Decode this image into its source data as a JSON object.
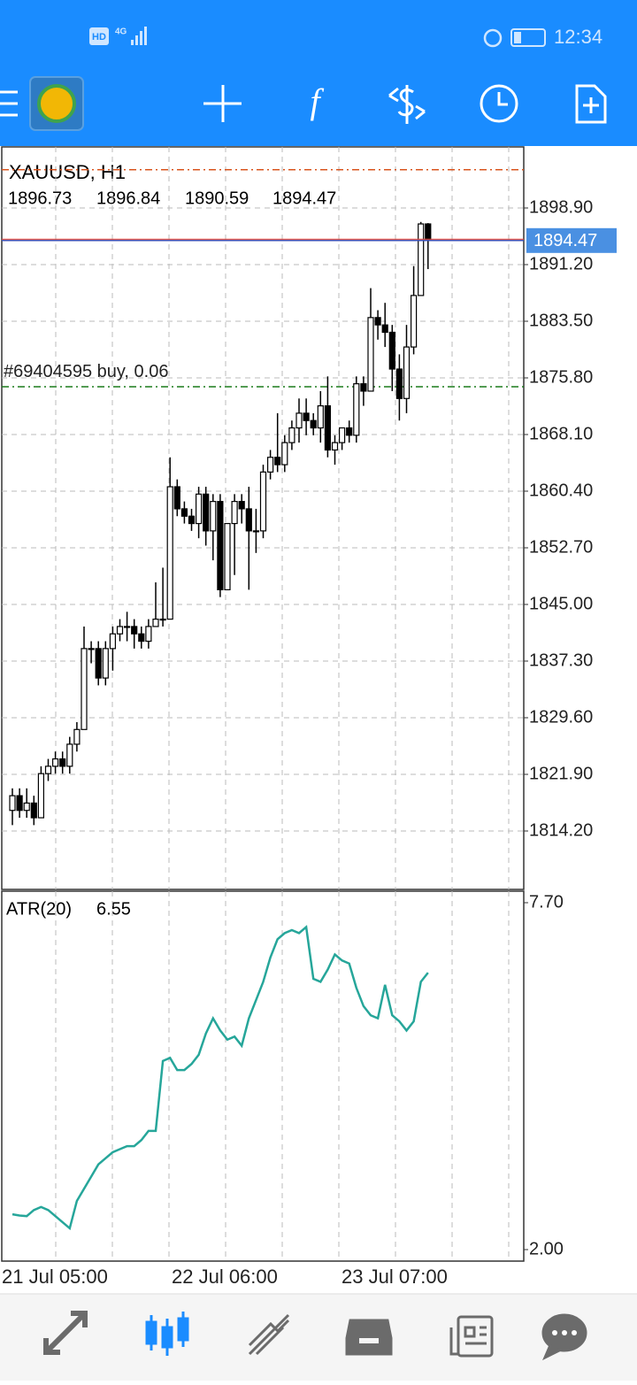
{
  "status_bar": {
    "hd": "HD",
    "network": "4G",
    "time": "12:34"
  },
  "toolbar": {
    "indicators": "f"
  },
  "chart_data": {
    "type": "candlestick",
    "title": "XAUUSD, H1",
    "candles": [
      {
        "open": 1817,
        "high": 1820,
        "low": 1815,
        "close": 1819
      },
      {
        "open": 1819,
        "high": 1820,
        "low": 1816,
        "close": 1817
      },
      {
        "open": 1817,
        "high": 1820,
        "low": 1816,
        "close": 1818
      },
      {
        "open": 1818,
        "high": 1819,
        "low": 1815,
        "close": 1816
      },
      {
        "open": 1816,
        "high": 1823,
        "low": 1816,
        "close": 1822
      },
      {
        "open": 1822,
        "high": 1824,
        "low": 1821,
        "close": 1823
      },
      {
        "open": 1823,
        "high": 1825,
        "low": 1822,
        "close": 1824
      },
      {
        "open": 1824,
        "high": 1825,
        "low": 1822,
        "close": 1823
      },
      {
        "open": 1823,
        "high": 1827,
        "low": 1822,
        "close": 1826
      },
      {
        "open": 1826,
        "high": 1829,
        "low": 1825,
        "close": 1828
      },
      {
        "open": 1828,
        "high": 1842,
        "low": 1828,
        "close": 1839
      },
      {
        "open": 1839,
        "high": 1840,
        "low": 1837,
        "close": 1839
      },
      {
        "open": 1839,
        "high": 1840,
        "low": 1834,
        "close": 1835
      },
      {
        "open": 1835,
        "high": 1840,
        "low": 1834,
        "close": 1839
      },
      {
        "open": 1839,
        "high": 1842,
        "low": 1836,
        "close": 1841
      },
      {
        "open": 1841,
        "high": 1843,
        "low": 1840,
        "close": 1842
      },
      {
        "open": 1842,
        "high": 1844,
        "low": 1840,
        "close": 1842
      },
      {
        "open": 1842,
        "high": 1843,
        "low": 1839,
        "close": 1841
      },
      {
        "open": 1841,
        "high": 1842,
        "low": 1839,
        "close": 1840
      },
      {
        "open": 1840,
        "high": 1843,
        "low": 1839,
        "close": 1842
      },
      {
        "open": 1842,
        "high": 1848,
        "low": 1842,
        "close": 1843
      },
      {
        "open": 1843,
        "high": 1850,
        "low": 1842,
        "close": 1843
      },
      {
        "open": 1843,
        "high": 1865,
        "low": 1843,
        "close": 1861
      },
      {
        "open": 1861,
        "high": 1862,
        "low": 1857,
        "close": 1858
      },
      {
        "open": 1858,
        "high": 1859,
        "low": 1856,
        "close": 1857
      },
      {
        "open": 1857,
        "high": 1858,
        "low": 1855,
        "close": 1856
      },
      {
        "open": 1856,
        "high": 1861,
        "low": 1854,
        "close": 1860
      },
      {
        "open": 1860,
        "high": 1861,
        "low": 1853,
        "close": 1855
      },
      {
        "open": 1855,
        "high": 1860,
        "low": 1851,
        "close": 1859
      },
      {
        "open": 1859,
        "high": 1860,
        "low": 1846,
        "close": 1847
      },
      {
        "open": 1847,
        "high": 1856,
        "low": 1847,
        "close": 1856
      },
      {
        "open": 1856,
        "high": 1860,
        "low": 1849,
        "close": 1859
      },
      {
        "open": 1859,
        "high": 1860,
        "low": 1856,
        "close": 1858
      },
      {
        "open": 1858,
        "high": 1861,
        "low": 1847,
        "close": 1855
      },
      {
        "open": 1855,
        "high": 1858,
        "low": 1852,
        "close": 1855
      },
      {
        "open": 1855,
        "high": 1864,
        "low": 1854,
        "close": 1863
      },
      {
        "open": 1863,
        "high": 1866,
        "low": 1862,
        "close": 1865
      },
      {
        "open": 1865,
        "high": 1871,
        "low": 1863,
        "close": 1864
      },
      {
        "open": 1864,
        "high": 1868,
        "low": 1863,
        "close": 1867
      },
      {
        "open": 1867,
        "high": 1870,
        "low": 1866,
        "close": 1869
      },
      {
        "open": 1869,
        "high": 1873,
        "low": 1867,
        "close": 1871
      },
      {
        "open": 1871,
        "high": 1873,
        "low": 1868,
        "close": 1870
      },
      {
        "open": 1870,
        "high": 1871,
        "low": 1868,
        "close": 1869
      },
      {
        "open": 1869,
        "high": 1874,
        "low": 1867,
        "close": 1872
      },
      {
        "open": 1872,
        "high": 1876,
        "low": 1865,
        "close": 1866
      },
      {
        "open": 1866,
        "high": 1868,
        "low": 1864,
        "close": 1867
      },
      {
        "open": 1867,
        "high": 1869,
        "low": 1866,
        "close": 1869
      },
      {
        "open": 1869,
        "high": 1870,
        "low": 1867,
        "close": 1868
      },
      {
        "open": 1868,
        "high": 1876,
        "low": 1867,
        "close": 1875
      },
      {
        "open": 1875,
        "high": 1876,
        "low": 1872,
        "close": 1874
      },
      {
        "open": 1874,
        "high": 1888,
        "low": 1874,
        "close": 1884
      },
      {
        "open": 1884,
        "high": 1885,
        "low": 1881,
        "close": 1883
      },
      {
        "open": 1883,
        "high": 1886,
        "low": 1880,
        "close": 1882
      },
      {
        "open": 1882,
        "high": 1883,
        "low": 1874,
        "close": 1877
      },
      {
        "open": 1877,
        "high": 1879,
        "low": 1870,
        "close": 1873
      },
      {
        "open": 1873,
        "high": 1883,
        "low": 1871,
        "close": 1880
      },
      {
        "open": 1880,
        "high": 1891,
        "low": 1879,
        "close": 1887
      },
      {
        "open": 1887,
        "high": 1897,
        "low": 1887,
        "close": 1896.73
      },
      {
        "open": 1896.73,
        "high": 1896.84,
        "low": 1890.59,
        "close": 1894.47
      }
    ],
    "ylim": [
      1806.26,
      1907.2
    ],
    "yticks": [
      {
        "value": 1898.9,
        "label": "1898.90"
      },
      {
        "value": 1891.2,
        "label": "1891.20"
      },
      {
        "value": 1883.5,
        "label": "1883.50"
      },
      {
        "value": 1875.8,
        "label": "1875.80"
      },
      {
        "value": 1868.1,
        "label": "1868.10"
      },
      {
        "value": 1860.4,
        "label": "1860.40"
      },
      {
        "value": 1852.7,
        "label": "1852.70"
      },
      {
        "value": 1845,
        "label": "1845.00"
      },
      {
        "value": 1837.3,
        "label": "1837.30"
      },
      {
        "value": 1829.6,
        "label": "1829.60"
      },
      {
        "value": 1821.9,
        "label": "1821.90"
      },
      {
        "value": 1814.2,
        "label": "1814.20"
      }
    ],
    "stop_level": 1904.1,
    "order": {
      "label": "#69404595 buy, 0.06",
      "price": 1874.6
    },
    "xlabels": [
      "21 Jul 05:00",
      "22 Jul 06:00",
      "23 Jul 07:00"
    ],
    "indicator": {
      "name": "ATR(20)",
      "color": "#26a69a",
      "values": [
        2.58,
        2.56,
        2.55,
        2.65,
        2.7,
        2.65,
        2.55,
        2.45,
        2.35,
        2.8,
        3.0,
        3.2,
        3.4,
        3.5,
        3.6,
        3.65,
        3.7,
        3.7,
        3.8,
        3.95,
        3.95,
        5.1,
        5.15,
        4.95,
        4.95,
        5.05,
        5.2,
        5.55,
        5.8,
        5.6,
        5.45,
        5.5,
        5.35,
        5.8,
        6.1,
        6.4,
        6.8,
        7.1,
        7.2,
        7.25,
        7.2,
        7.3,
        6.45,
        6.4,
        6.6,
        6.85,
        6.75,
        6.7,
        6.3,
        6.0,
        5.85,
        5.8,
        6.35,
        5.85,
        5.75,
        5.6,
        5.75,
        6.4,
        6.55
      ],
      "ylim": [
        2.0,
        7.7
      ],
      "yticks": [
        {
          "value": 7.7,
          "label": "7.70"
        },
        {
          "value": 2.0,
          "label": "2.00"
        }
      ]
    }
  }
}
